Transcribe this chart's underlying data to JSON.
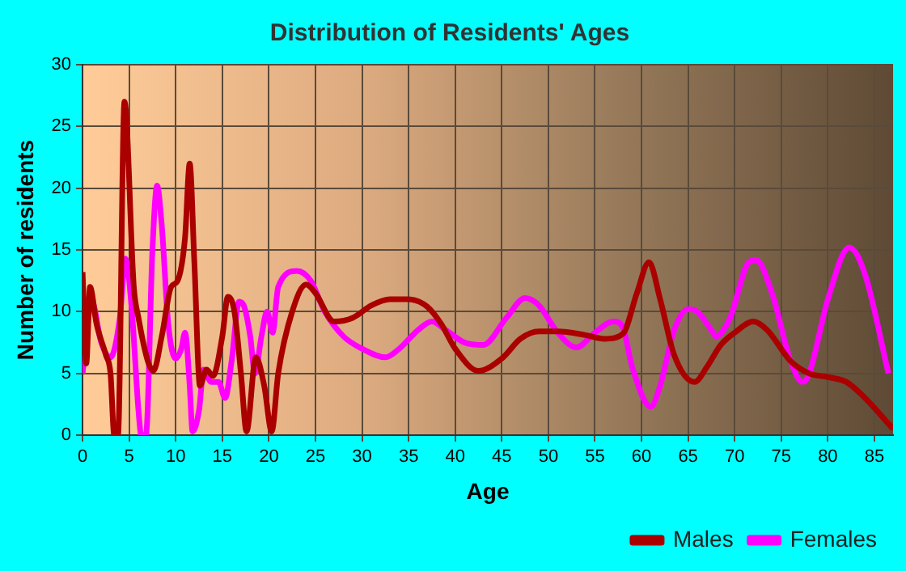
{
  "chart_data": {
    "type": "line",
    "title": "Distribution of Residents' Ages",
    "xlabel": "Age",
    "ylabel": "Number of residents",
    "xlim": [
      0,
      87
    ],
    "xticks": [
      0,
      5,
      10,
      15,
      20,
      25,
      30,
      35,
      40,
      45,
      50,
      55,
      60,
      65,
      70,
      75,
      80,
      85
    ],
    "ylim": [
      0,
      30
    ],
    "yticks": [
      0,
      5,
      10,
      15,
      20,
      25,
      30
    ],
    "grid": true,
    "legend": "bottom right",
    "marker": "none",
    "line_style": "solid",
    "series": [
      {
        "name": "Males",
        "color": "#aa0000",
        "x": [
          0,
          0.4,
          0.8,
          1.5,
          2.5,
          3,
          3.4,
          3.8,
          4.5,
          5.5,
          6,
          7,
          7.6,
          8.5,
          9.5,
          10.2,
          11,
          11.5,
          12,
          12.6,
          13.3,
          14,
          15,
          15.6,
          16.3,
          17,
          17.6,
          18.6,
          19.5,
          20.3,
          21,
          22.5,
          24,
          25,
          27,
          29,
          31,
          33,
          35,
          37,
          38.5,
          40,
          42.5,
          45,
          47,
          49,
          51,
          54,
          56,
          58,
          59.5,
          60.8,
          62,
          63.5,
          65.7,
          67,
          68.5,
          70,
          72,
          73.5,
          76,
          78,
          80,
          82,
          84,
          87
        ],
        "values": [
          13.2,
          5.8,
          12,
          9,
          6.5,
          5,
          0,
          0,
          27,
          12,
          9.5,
          6,
          5.2,
          8,
          12,
          12.5,
          16,
          22,
          14,
          4,
          5.3,
          4.8,
          8,
          11.2,
          10,
          5,
          0.3,
          6.3,
          4,
          0.3,
          5,
          10,
          12.2,
          11.5,
          9.2,
          9.5,
          10.5,
          11,
          11,
          10.4,
          9,
          7,
          5.2,
          6.2,
          7.8,
          8.4,
          8.4,
          8.1,
          7.8,
          8.2,
          11.5,
          14,
          11,
          6.5,
          4.3,
          5.5,
          7.3,
          8.3,
          9.2,
          8.5,
          6,
          5,
          4.7,
          4.3,
          3,
          0.5
        ]
      },
      {
        "name": "Females",
        "color": "#ff00ff",
        "x": [
          0,
          1,
          2,
          3,
          4,
          4.6,
          5.3,
          6,
          6.3,
          6.8,
          7.5,
          8,
          8.5,
          9.2,
          10,
          10.6,
          11,
          11.5,
          11.8,
          12.5,
          13,
          13.8,
          14.6,
          15.3,
          16,
          16.8,
          17.3,
          18,
          18.5,
          19.2,
          19.8,
          20.4,
          21,
          23,
          24.5,
          26,
          28,
          30,
          32.5,
          34,
          36,
          37.5,
          39,
          41,
          43,
          45.5,
          47.5,
          49,
          51,
          53,
          55,
          57,
          58,
          59,
          61,
          62,
          63.5,
          65,
          66,
          67.5,
          68,
          69.5,
          71.5,
          72.3,
          74,
          76,
          77.3,
          78,
          80,
          82.3,
          84,
          86.5
        ],
        "values": [
          5,
          10.8,
          7.5,
          6.3,
          9.5,
          14.3,
          10,
          2,
          0,
          0,
          15,
          20.2,
          17,
          9,
          6.2,
          7,
          8.3,
          4,
          0.3,
          2,
          5.3,
          4.3,
          4.3,
          3,
          6,
          10.8,
          10.5,
          8,
          5,
          8,
          10,
          8.3,
          12,
          13.3,
          12.5,
          10,
          8,
          7,
          6.3,
          7,
          8.5,
          9.2,
          8.5,
          7.5,
          7.3,
          9.5,
          11.1,
          10.5,
          8.3,
          7.1,
          8.3,
          9.2,
          8.7,
          5.5,
          2.3,
          4,
          8.5,
          10.2,
          10,
          8.5,
          8,
          9.5,
          14,
          14.2,
          11.5,
          6,
          4.3,
          5,
          11,
          15.2,
          13,
          5
        ]
      }
    ]
  }
}
